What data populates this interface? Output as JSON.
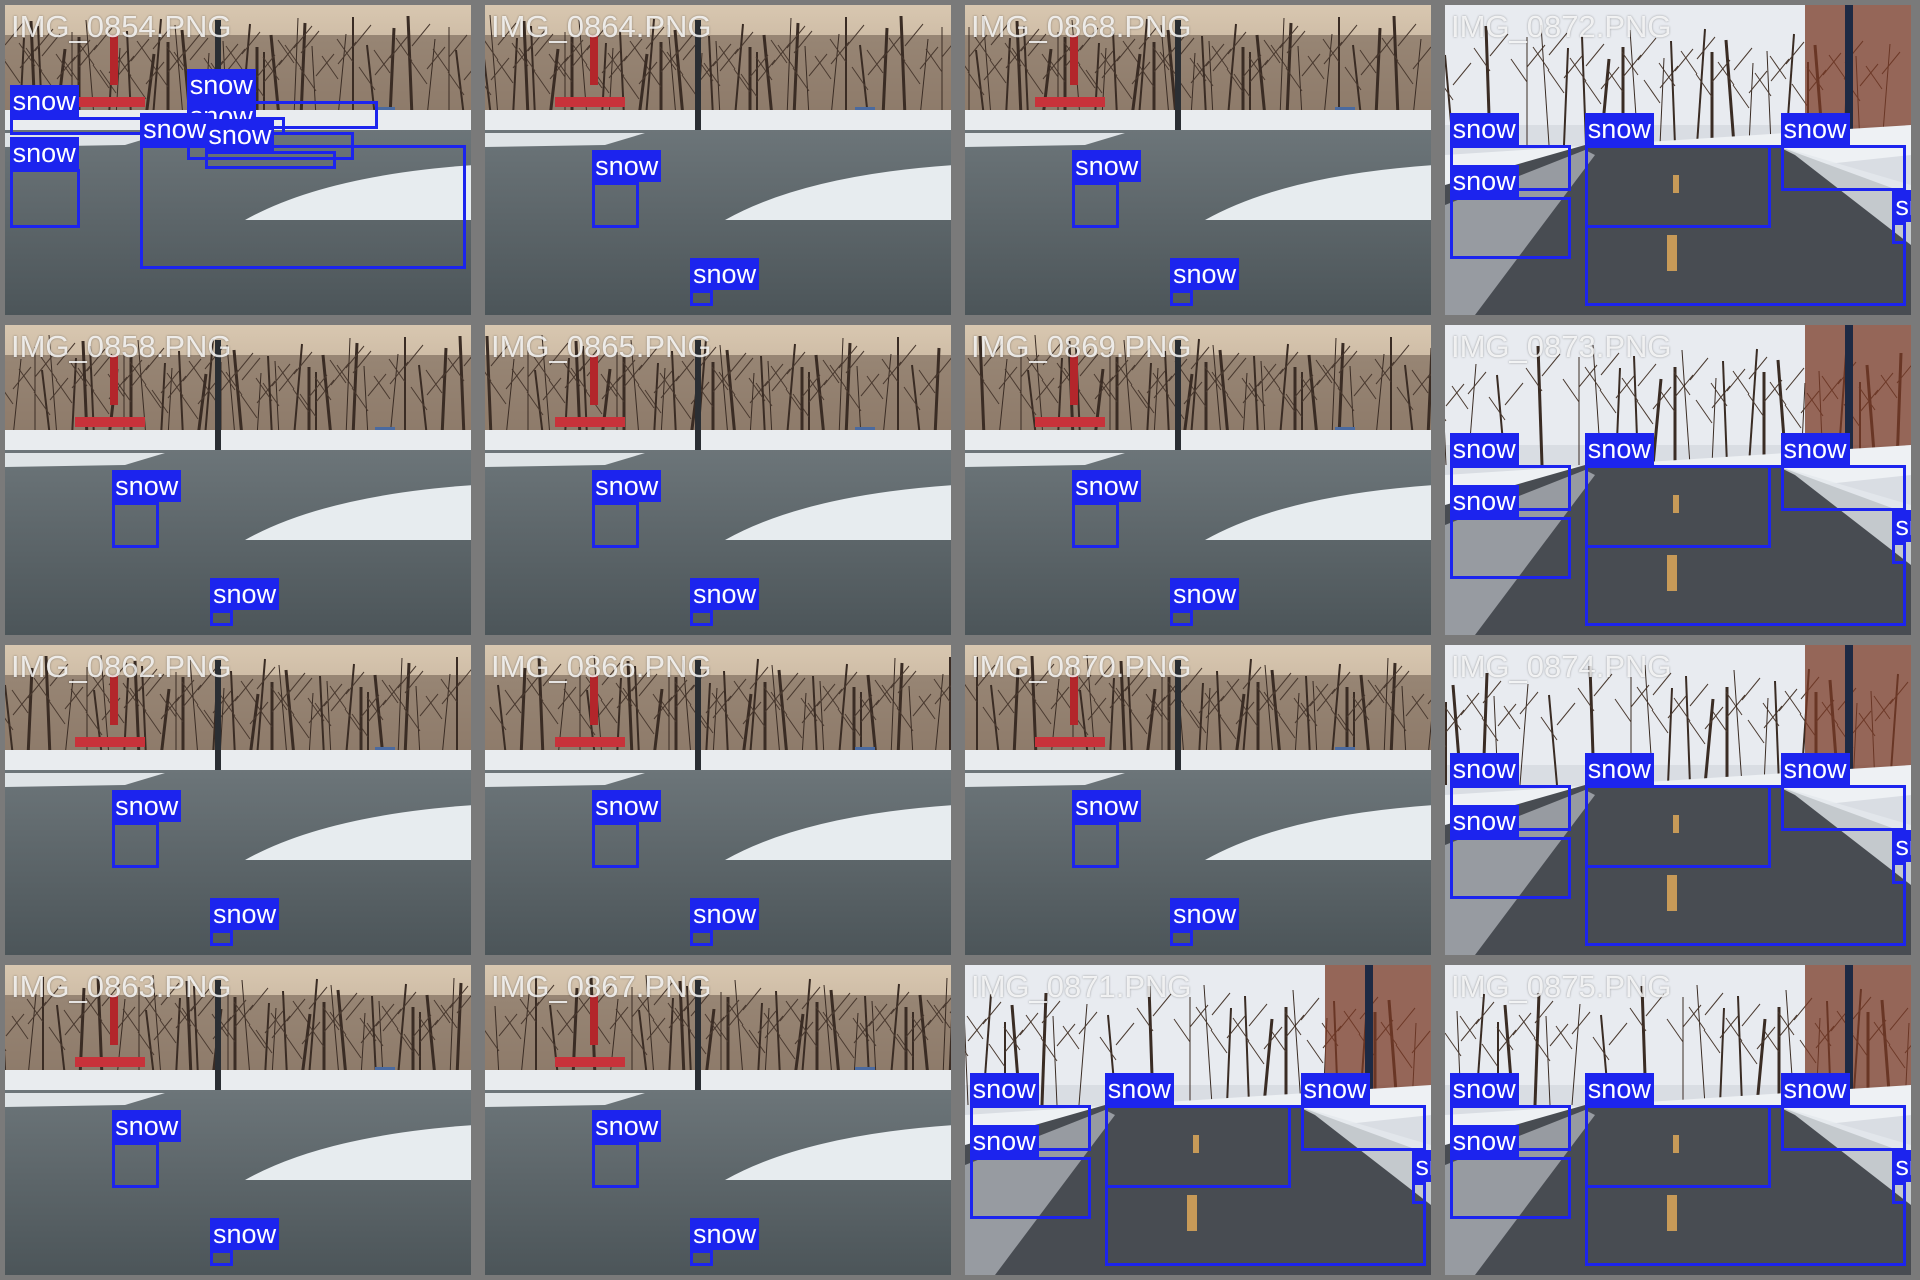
{
  "class_label": "snow",
  "box_color": "#1c24ee",
  "images": [
    {
      "name": "IMG_0854.PNG",
      "scene": "plaza",
      "boxes": [
        [
          0.01,
          0.36,
          0.6,
          0.42
        ],
        [
          0.39,
          0.31,
          0.8,
          0.4
        ],
        [
          0.39,
          0.41,
          0.75,
          0.5
        ],
        [
          0.43,
          0.47,
          0.71,
          0.53
        ],
        [
          0.01,
          0.53,
          0.16,
          0.72
        ],
        [
          0.29,
          0.45,
          0.99,
          0.85
        ]
      ]
    },
    {
      "name": "IMG_0864.PNG",
      "scene": "plaza",
      "boxes": [
        [
          0.23,
          0.57,
          0.33,
          0.72
        ],
        [
          0.44,
          0.92,
          0.49,
          0.97
        ]
      ]
    },
    {
      "name": "IMG_0868.PNG",
      "scene": "plaza",
      "boxes": [
        [
          0.23,
          0.57,
          0.33,
          0.72
        ],
        [
          0.44,
          0.92,
          0.49,
          0.97
        ]
      ]
    },
    {
      "name": "IMG_0872.PNG",
      "scene": "road",
      "boxes": [
        [
          0.01,
          0.45,
          0.27,
          0.6
        ],
        [
          0.3,
          0.45,
          0.7,
          0.72
        ],
        [
          0.72,
          0.45,
          0.99,
          0.6
        ],
        [
          0.01,
          0.62,
          0.27,
          0.82
        ],
        [
          0.3,
          0.45,
          0.99,
          0.97
        ],
        [
          0.96,
          0.7,
          0.99,
          0.77
        ]
      ]
    },
    {
      "name": "IMG_0858.PNG",
      "scene": "plaza",
      "boxes": [
        [
          0.23,
          0.57,
          0.33,
          0.72
        ],
        [
          0.44,
          0.92,
          0.49,
          0.97
        ]
      ]
    },
    {
      "name": "IMG_0865.PNG",
      "scene": "plaza",
      "boxes": [
        [
          0.23,
          0.57,
          0.33,
          0.72
        ],
        [
          0.44,
          0.92,
          0.49,
          0.97
        ]
      ]
    },
    {
      "name": "IMG_0869.PNG",
      "scene": "plaza",
      "boxes": [
        [
          0.23,
          0.57,
          0.33,
          0.72
        ],
        [
          0.44,
          0.92,
          0.49,
          0.97
        ]
      ]
    },
    {
      "name": "IMG_0873.PNG",
      "scene": "road",
      "boxes": [
        [
          0.01,
          0.45,
          0.27,
          0.6
        ],
        [
          0.3,
          0.45,
          0.7,
          0.72
        ],
        [
          0.72,
          0.45,
          0.99,
          0.6
        ],
        [
          0.01,
          0.62,
          0.27,
          0.82
        ],
        [
          0.3,
          0.45,
          0.99,
          0.97
        ],
        [
          0.96,
          0.7,
          0.99,
          0.77
        ]
      ]
    },
    {
      "name": "IMG_0862.PNG",
      "scene": "plaza",
      "boxes": [
        [
          0.23,
          0.57,
          0.33,
          0.72
        ],
        [
          0.44,
          0.92,
          0.49,
          0.97
        ]
      ]
    },
    {
      "name": "IMG_0866.PNG",
      "scene": "plaza",
      "boxes": [
        [
          0.23,
          0.57,
          0.33,
          0.72
        ],
        [
          0.44,
          0.92,
          0.49,
          0.97
        ]
      ]
    },
    {
      "name": "IMG_0870.PNG",
      "scene": "plaza",
      "boxes": [
        [
          0.23,
          0.57,
          0.33,
          0.72
        ],
        [
          0.44,
          0.92,
          0.49,
          0.97
        ]
      ]
    },
    {
      "name": "IMG_0874.PNG",
      "scene": "road",
      "boxes": [
        [
          0.01,
          0.45,
          0.27,
          0.6
        ],
        [
          0.3,
          0.45,
          0.7,
          0.72
        ],
        [
          0.72,
          0.45,
          0.99,
          0.6
        ],
        [
          0.01,
          0.62,
          0.27,
          0.82
        ],
        [
          0.3,
          0.45,
          0.99,
          0.97
        ],
        [
          0.96,
          0.7,
          0.99,
          0.77
        ]
      ]
    },
    {
      "name": "IMG_0863.PNG",
      "scene": "plaza",
      "boxes": [
        [
          0.23,
          0.57,
          0.33,
          0.72
        ],
        [
          0.44,
          0.92,
          0.49,
          0.97
        ]
      ]
    },
    {
      "name": "IMG_0867.PNG",
      "scene": "plaza",
      "boxes": [
        [
          0.23,
          0.57,
          0.33,
          0.72
        ],
        [
          0.44,
          0.92,
          0.49,
          0.97
        ]
      ]
    },
    {
      "name": "IMG_0871.PNG",
      "scene": "road",
      "boxes": [
        [
          0.01,
          0.45,
          0.27,
          0.6
        ],
        [
          0.3,
          0.45,
          0.7,
          0.72
        ],
        [
          0.72,
          0.45,
          0.99,
          0.6
        ],
        [
          0.01,
          0.62,
          0.27,
          0.82
        ],
        [
          0.3,
          0.45,
          0.99,
          0.97
        ],
        [
          0.96,
          0.7,
          0.99,
          0.77
        ]
      ]
    },
    {
      "name": "IMG_0875.PNG",
      "scene": "road",
      "boxes": [
        [
          0.01,
          0.45,
          0.27,
          0.6
        ],
        [
          0.3,
          0.45,
          0.7,
          0.72
        ],
        [
          0.72,
          0.45,
          0.99,
          0.6
        ],
        [
          0.01,
          0.62,
          0.27,
          0.82
        ],
        [
          0.3,
          0.45,
          0.99,
          0.97
        ],
        [
          0.96,
          0.7,
          0.99,
          0.77
        ]
      ]
    }
  ]
}
